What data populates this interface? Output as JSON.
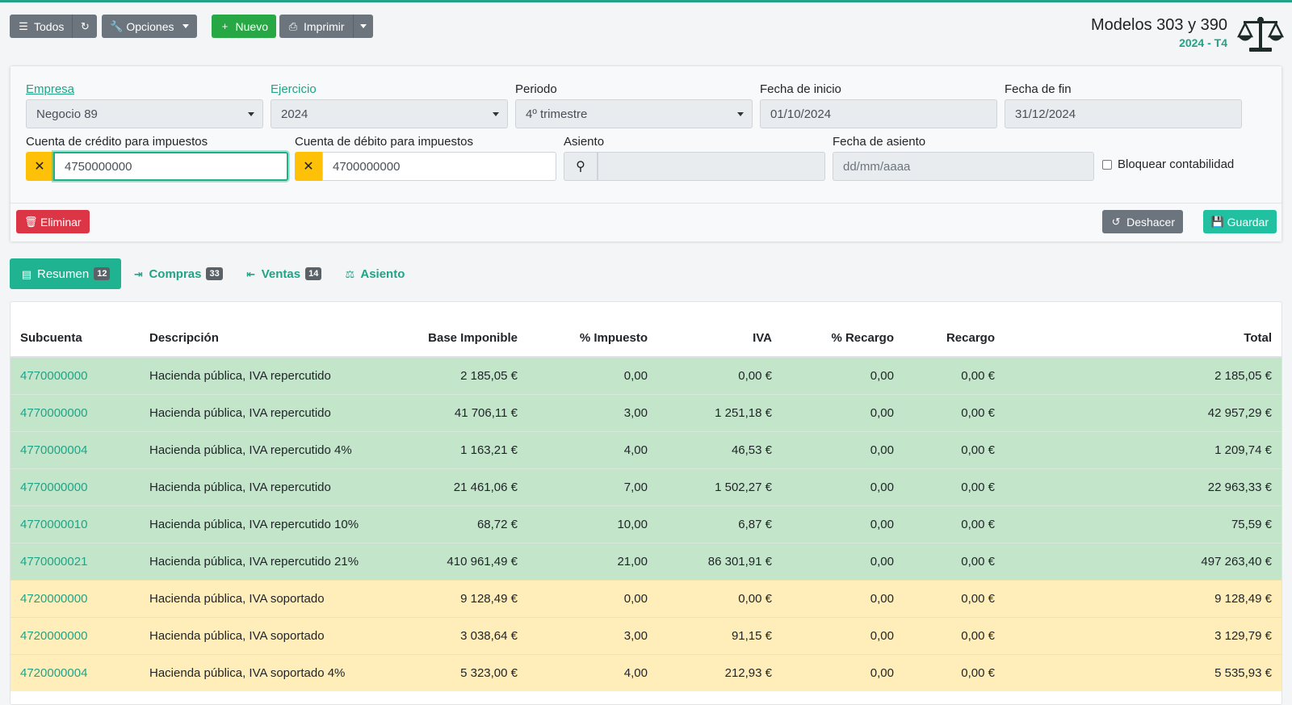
{
  "toolbar": {
    "todos": "Todos",
    "opciones": "Opciones",
    "nuevo": "Nuevo",
    "imprimir": "Imprimir"
  },
  "header": {
    "title": "Modelos 303 y 390",
    "subtitle": "2024 - T4"
  },
  "form": {
    "empresa_label": "Empresa",
    "empresa_value": "Negocio 89",
    "ejercicio_label": "Ejercicio",
    "ejercicio_value": "2024",
    "periodo_label": "Periodo",
    "periodo_value": "4º trimestre",
    "fecha_inicio_label": "Fecha de inicio",
    "fecha_inicio_value": "01/10/2024",
    "fecha_fin_label": "Fecha de fin",
    "fecha_fin_value": "31/12/2024",
    "credito_label": "Cuenta de crédito para impuestos",
    "credito_value": "4750000000",
    "debito_label": "Cuenta de débito para impuestos",
    "debito_value": "4700000000",
    "asiento_label": "Asiento",
    "asiento_value": "",
    "fecha_asiento_label": "Fecha de asiento",
    "fecha_asiento_placeholder": "dd/mm/aaaa",
    "bloquear_label": "Bloquear contabilidad"
  },
  "actions": {
    "eliminar": "Eliminar",
    "deshacer": "Deshacer",
    "guardar": "Guardar"
  },
  "tabs": [
    {
      "label": "Resumen",
      "badge": "12"
    },
    {
      "label": "Compras",
      "badge": "33"
    },
    {
      "label": "Ventas",
      "badge": "14"
    },
    {
      "label": "Asiento",
      "badge": ""
    }
  ],
  "table": {
    "headers": [
      "Subcuenta",
      "Descripción",
      "Base Imponible",
      "% Impuesto",
      "IVA",
      "% Recargo",
      "Recargo",
      "Total"
    ],
    "rows": [
      [
        "4770000000",
        "Hacienda pública, IVA repercutido",
        "2 185,05 €",
        "0,00",
        "0,00 €",
        "0,00",
        "0,00 €",
        "2 185,05 €"
      ],
      [
        "4770000000",
        "Hacienda pública, IVA repercutido",
        "41 706,11 €",
        "3,00",
        "1 251,18 €",
        "0,00",
        "0,00 €",
        "42 957,29 €"
      ],
      [
        "4770000004",
        "Hacienda pública, IVA repercutido 4%",
        "1 163,21 €",
        "4,00",
        "46,53 €",
        "0,00",
        "0,00 €",
        "1 209,74 €"
      ],
      [
        "4770000000",
        "Hacienda pública, IVA repercutido",
        "21 461,06 €",
        "7,00",
        "1 502,27 €",
        "0,00",
        "0,00 €",
        "22 963,33 €"
      ],
      [
        "4770000010",
        "Hacienda pública, IVA repercutido 10%",
        "68,72 €",
        "10,00",
        "6,87 €",
        "0,00",
        "0,00 €",
        "75,59 €"
      ],
      [
        "4770000021",
        "Hacienda pública, IVA repercutido 21%",
        "410 961,49 €",
        "21,00",
        "86 301,91 €",
        "0,00",
        "0,00 €",
        "497 263,40 €"
      ],
      [
        "4720000000",
        "Hacienda pública, IVA soportado",
        "9 128,49 €",
        "0,00",
        "0,00 €",
        "0,00",
        "0,00 €",
        "9 128,49 €"
      ],
      [
        "4720000000",
        "Hacienda pública, IVA soportado",
        "3 038,64 €",
        "3,00",
        "91,15 €",
        "0,00",
        "0,00 €",
        "3 129,79 €"
      ],
      [
        "4720000004",
        "Hacienda pública, IVA soportado 4%",
        "5 323,00 €",
        "4,00",
        "212,93 €",
        "0,00",
        "0,00 €",
        "5 535,93 €"
      ]
    ],
    "row_colors": [
      "#c3e6cb",
      "#ffeeba"
    ]
  },
  "colors": {
    "accent": "#20a386",
    "success": "#28a745",
    "danger": "#dc3545",
    "warning": "#ffc107",
    "secondary": "#6c757d"
  }
}
